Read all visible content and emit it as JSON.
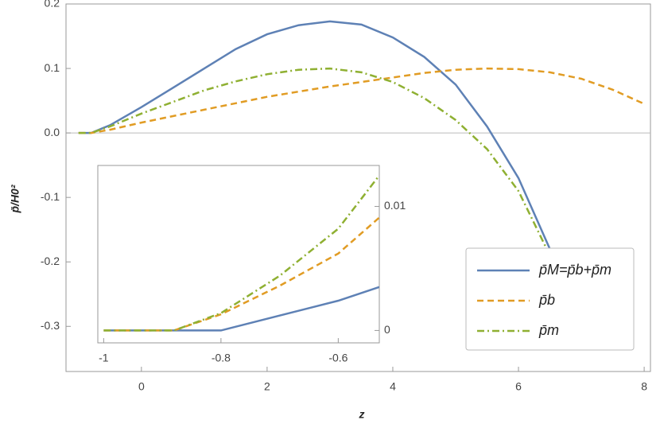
{
  "chart_data": [
    {
      "type": "line",
      "xlabel": "z",
      "ylabel": "p̄/H0²",
      "x": [
        -1,
        -0.8,
        -0.5,
        0,
        0.5,
        1,
        1.5,
        2,
        2.5,
        3,
        3.5,
        4,
        4.5,
        5,
        5.5,
        6,
        6.5,
        7,
        7.5,
        8
      ],
      "series": [
        {
          "name": "p̄M=p̄b+p̄m",
          "color": "#5e81b5",
          "dash": "solid",
          "values": [
            0,
            0,
            0.012,
            0.04,
            0.07,
            0.1,
            0.13,
            0.153,
            0.167,
            0.173,
            0.168,
            0.148,
            0.118,
            0.075,
            0.01,
            -0.07,
            -0.18,
            -0.31,
            null,
            null
          ]
        },
        {
          "name": "p̄b",
          "color": "#e19c24",
          "dash": "dashed",
          "values": [
            0,
            0,
            0.005,
            0.016,
            0.026,
            0.036,
            0.046,
            0.056,
            0.064,
            0.072,
            0.079,
            0.086,
            0.093,
            0.098,
            0.1,
            0.099,
            0.094,
            0.084,
            0.067,
            0.045
          ]
        },
        {
          "name": "p̄m",
          "color": "#8fb032",
          "dash": "dotdash",
          "values": [
            0,
            0,
            0.01,
            0.03,
            0.048,
            0.066,
            0.08,
            0.091,
            0.098,
            0.1,
            0.094,
            0.079,
            0.054,
            0.02,
            -0.025,
            -0.09,
            -0.19,
            null,
            null,
            null
          ]
        }
      ],
      "xlim": [
        -1.2,
        8.1
      ],
      "ylim": [
        -0.37,
        0.2
      ],
      "xticks": [
        0,
        2,
        4,
        6,
        8
      ],
      "yticks": [
        0.2,
        0.1,
        {
          "value": 0,
          "label": "0.0"
        },
        -0.1,
        -0.2,
        -0.3
      ],
      "legend": "lower right"
    },
    {
      "type": "line",
      "x": [
        -1,
        -0.9,
        -0.88,
        -0.8,
        -0.7,
        -0.6,
        -0.53
      ],
      "series": [
        {
          "color": "#5e81b5",
          "dash": "solid",
          "values": [
            0,
            0,
            0,
            0,
            0.0012,
            0.0024,
            0.0035
          ]
        },
        {
          "color": "#e19c24",
          "dash": "dashed",
          "values": [
            0,
            0,
            0,
            0.0013,
            0.0036,
            0.0062,
            0.0091
          ]
        },
        {
          "color": "#8fb032",
          "dash": "dotdash",
          "values": [
            0,
            0,
            0,
            0.0014,
            0.0044,
            0.0082,
            0.0125
          ]
        }
      ],
      "xlim": [
        -1.01,
        -0.53
      ],
      "ylim": [
        -0.001,
        0.0133
      ],
      "xticks": [
        -1,
        -0.8,
        -0.6
      ],
      "yticks": [
        0,
        0.01
      ],
      "yaxis_side": "right"
    }
  ]
}
